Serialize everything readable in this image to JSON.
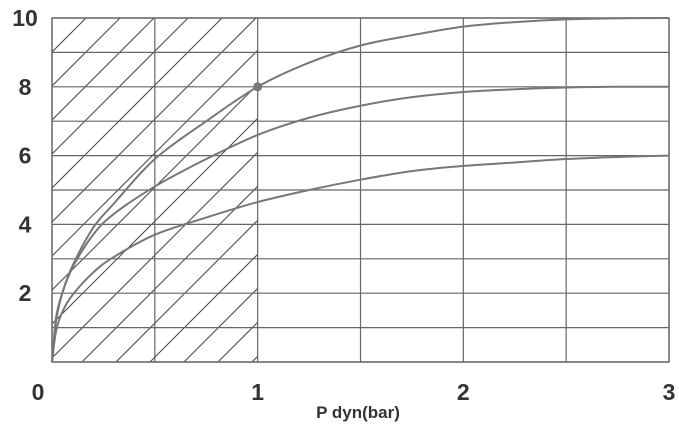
{
  "chart_data": {
    "type": "line",
    "xlabel": "P dyn(bar)",
    "ylabel": "",
    "title": "",
    "xlim": [
      0,
      3
    ],
    "ylim": [
      0,
      10
    ],
    "x_ticks": [
      {
        "value": 0,
        "label": "0"
      },
      {
        "value": 1,
        "label": "1"
      },
      {
        "value": 2,
        "label": "2"
      },
      {
        "value": 3,
        "label": "3"
      }
    ],
    "y_ticks": [
      {
        "value": 2,
        "label": "2"
      },
      {
        "value": 4,
        "label": "4"
      },
      {
        "value": 6,
        "label": "6"
      },
      {
        "value": 8,
        "label": "8"
      },
      {
        "value": 10,
        "label": "10"
      }
    ],
    "x_minor_step": 0.5,
    "y_minor_step": 1,
    "grid": true,
    "hatched_region": {
      "x_from": 0,
      "x_to": 1
    },
    "series": [
      {
        "x": [
          0,
          0.02,
          0.05,
          0.1,
          0.2,
          0.3,
          0.5,
          0.75,
          1.0,
          1.25,
          1.5,
          1.75,
          2.0,
          2.25,
          2.5,
          2.75,
          3.0
        ],
        "y": [
          0,
          1.2,
          2.0,
          2.8,
          3.9,
          4.6,
          5.9,
          7.0,
          8.0,
          8.7,
          9.2,
          9.5,
          9.75,
          9.88,
          9.96,
          9.99,
          10.0
        ]
      },
      {
        "x": [
          0,
          0.02,
          0.05,
          0.1,
          0.2,
          0.3,
          0.5,
          0.75,
          1.0,
          1.25,
          1.5,
          1.75,
          2.0,
          2.25,
          2.5,
          2.75,
          3.0
        ],
        "y": [
          0,
          1.3,
          2.0,
          2.75,
          3.7,
          4.3,
          5.1,
          5.9,
          6.6,
          7.1,
          7.45,
          7.7,
          7.85,
          7.93,
          7.98,
          8.0,
          8.0
        ]
      },
      {
        "x": [
          0,
          0.02,
          0.05,
          0.1,
          0.2,
          0.3,
          0.5,
          0.75,
          1.0,
          1.25,
          1.5,
          1.75,
          2.0,
          2.25,
          2.5,
          2.75,
          3.0
        ],
        "y": [
          0,
          0.9,
          1.45,
          1.95,
          2.6,
          3.05,
          3.7,
          4.2,
          4.65,
          5.0,
          5.3,
          5.55,
          5.7,
          5.8,
          5.9,
          5.96,
          6.0
        ]
      }
    ],
    "markers": [
      {
        "x": 1,
        "y": 8
      }
    ],
    "colors": {
      "grid": "#666666",
      "curve": "#777777",
      "marker": "#777777",
      "hatch": "#444444",
      "text": "#333333"
    }
  }
}
